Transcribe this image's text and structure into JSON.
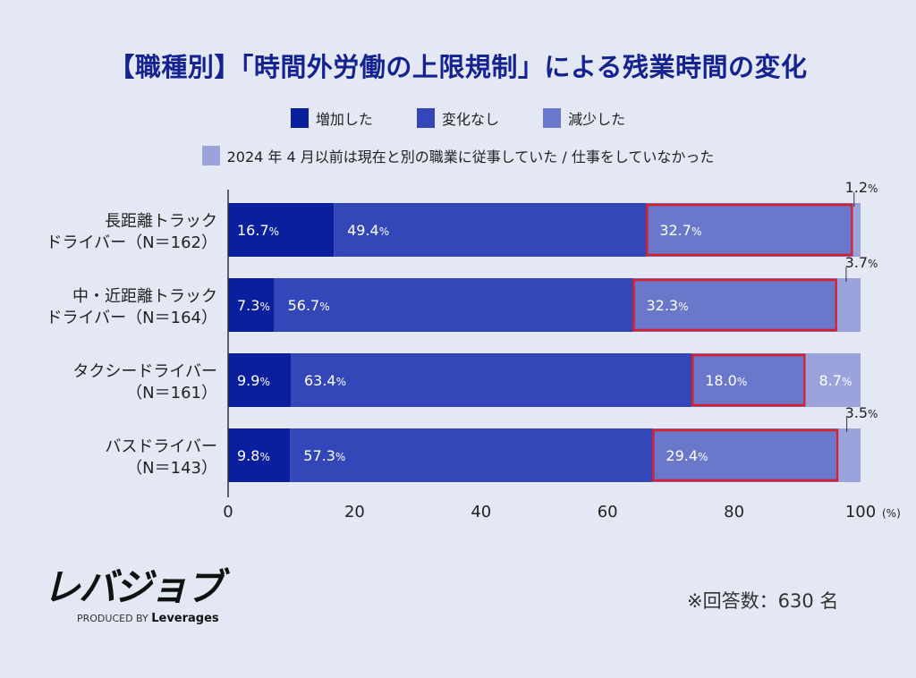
{
  "title": "【職種別】「時間外労働の上限規制」による残業時間の変化",
  "colors": {
    "increased": "#0a1f9e",
    "unchanged": "#3447b8",
    "decreased": "#6a78cc",
    "other": "#9aa3dc",
    "highlight": "#d9202a"
  },
  "chart_data": {
    "type": "bar",
    "orientation": "horizontal",
    "stacked": true,
    "categories": [
      [
        "長距離トラック",
        "ドライバー（N＝162）"
      ],
      [
        "中・近距離トラック",
        "ドライバー（N＝164）"
      ],
      [
        "タクシードライバー",
        "（N＝161）"
      ],
      [
        "バスドライバー",
        "（N＝143）"
      ]
    ],
    "series": [
      {
        "name": "増加した",
        "values": [
          16.7,
          7.3,
          9.9,
          9.8
        ]
      },
      {
        "name": "変化なし",
        "values": [
          49.4,
          56.7,
          63.4,
          57.3
        ]
      },
      {
        "name": "減少した",
        "values": [
          32.7,
          32.3,
          18.0,
          29.4
        ]
      },
      {
        "name": "2024 年 4 月以前は現在と別の職業に従事していた / 仕事をしていなかった",
        "values": [
          1.2,
          3.7,
          8.7,
          3.5
        ]
      }
    ],
    "xlim": [
      0,
      100
    ],
    "xticks": [
      "0",
      "20",
      "40",
      "60",
      "80",
      "100"
    ],
    "xunit": "(%)",
    "legend": "top",
    "highlighted_series": "減少した"
  },
  "footer": {
    "logo": "レバジョブ",
    "logo_sub_prefix": "PRODUCED BY",
    "logo_sub_brand": "Leverages",
    "respondents": "※回答数：630 名"
  }
}
